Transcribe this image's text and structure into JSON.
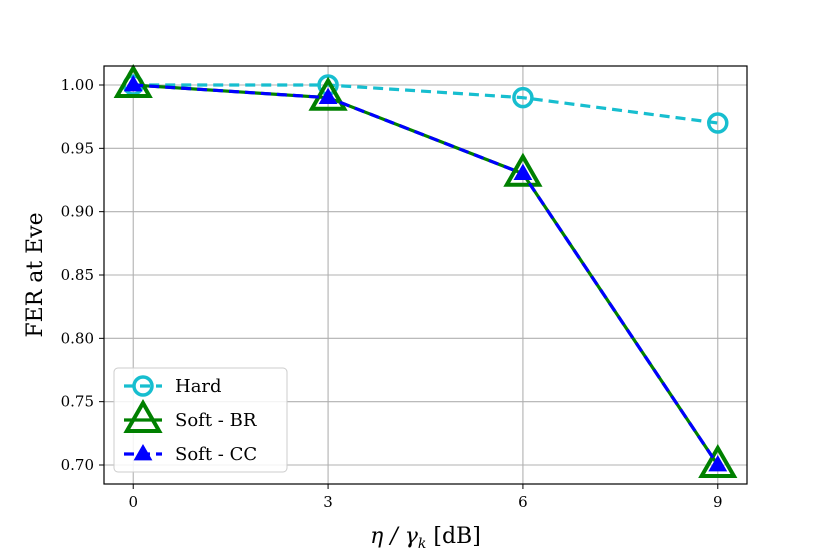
{
  "chart_data": {
    "type": "line",
    "title": "",
    "xlabel": "η / γ_k [dB]",
    "xlabel_parts": {
      "main": "η / γ",
      "sub": "k",
      "unit": " [dB]"
    },
    "ylabel": "FER at Eve",
    "x": [
      0,
      3,
      6,
      9
    ],
    "xlim": [
      -0.45,
      9.45
    ],
    "ylim": [
      0.685,
      1.015
    ],
    "xticks": [
      "0",
      "3",
      "6",
      "9"
    ],
    "yticks": [
      "0.70",
      "0.75",
      "0.80",
      "0.85",
      "0.90",
      "0.95",
      "1.00"
    ],
    "ytick_values": [
      0.7,
      0.75,
      0.8,
      0.85,
      0.9,
      0.95,
      1.0
    ],
    "grid": true,
    "legend_position": "lower-left",
    "series": [
      {
        "name": "Hard",
        "values": [
          1.0,
          1.0,
          0.99,
          0.97
        ],
        "color": "#17becf",
        "line": "dashed",
        "marker": "circle-open"
      },
      {
        "name": "Soft - BR",
        "values": [
          1.0,
          0.99,
          0.93,
          0.7
        ],
        "color": "#008000",
        "line": "solid",
        "marker": "triangle-open"
      },
      {
        "name": "Soft - CC",
        "values": [
          1.0,
          0.99,
          0.93,
          0.7
        ],
        "color": "#0000ff",
        "line": "dashed",
        "marker": "triangle-filled"
      }
    ]
  }
}
